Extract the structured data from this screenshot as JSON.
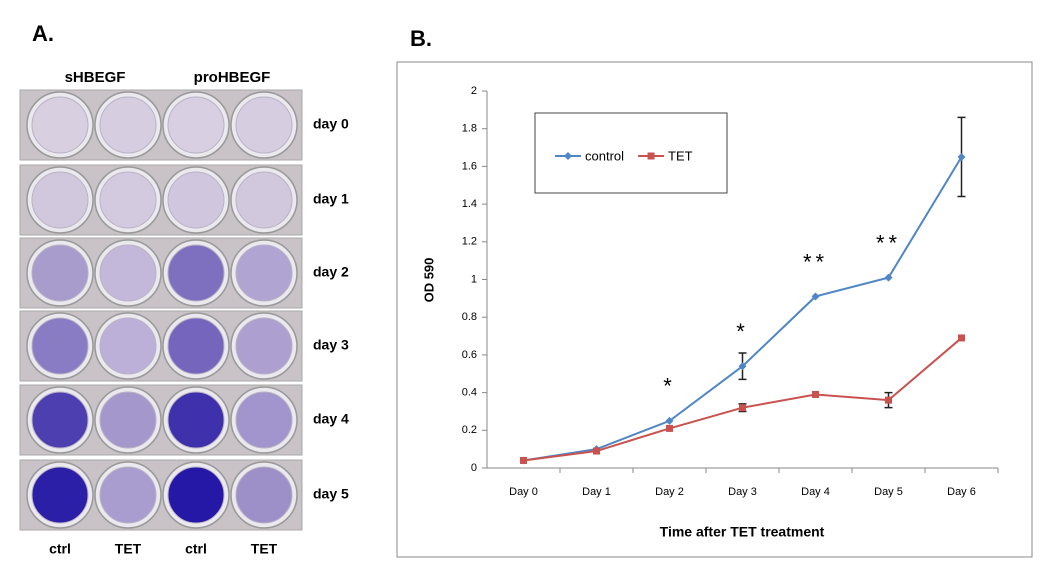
{
  "panel_a": {
    "label": "A.",
    "column_headers": [
      "sHBEGF",
      "proHBEGF"
    ],
    "rows": [
      "day 0",
      "day 1",
      "day 2",
      "day 3",
      "day 4",
      "day 5"
    ],
    "bottom_labels": [
      "ctrl",
      "TET",
      "ctrl",
      "TET"
    ]
  },
  "chart_data": {
    "type": "line",
    "panel_label": "B.",
    "ylabel": "OD 590",
    "xlabel": "Time after TET treatment",
    "categories": [
      "Day 0",
      "Day 1",
      "Day 2",
      "Day 3",
      "Day 4",
      "Day 5",
      "Day 6"
    ],
    "series": [
      {
        "name": "control",
        "color": "#4f86c6",
        "marker": "diamond",
        "values": [
          0.04,
          0.1,
          0.25,
          0.54,
          0.91,
          1.01,
          1.65
        ],
        "errors": [
          null,
          null,
          null,
          0.07,
          null,
          null,
          0.21
        ]
      },
      {
        "name": "TET",
        "color": "#c9524f",
        "marker": "square",
        "values": [
          0.04,
          0.09,
          0.21,
          0.32,
          0.39,
          0.36,
          0.69
        ],
        "errors": [
          null,
          null,
          null,
          0.02,
          null,
          0.04,
          null
        ]
      }
    ],
    "annotations": [
      {
        "text": "*",
        "category": "Day 2"
      },
      {
        "text": "*",
        "category": "Day 3"
      },
      {
        "text": "**",
        "category": "Day 4"
      },
      {
        "text": "**",
        "category": "Day 5"
      }
    ],
    "ylim": [
      0,
      2
    ],
    "yticks": [
      0,
      0.2,
      0.4,
      0.6,
      0.8,
      1,
      1.2,
      1.4,
      1.6,
      1.8,
      2
    ],
    "grid": false,
    "legend": "upper left"
  }
}
